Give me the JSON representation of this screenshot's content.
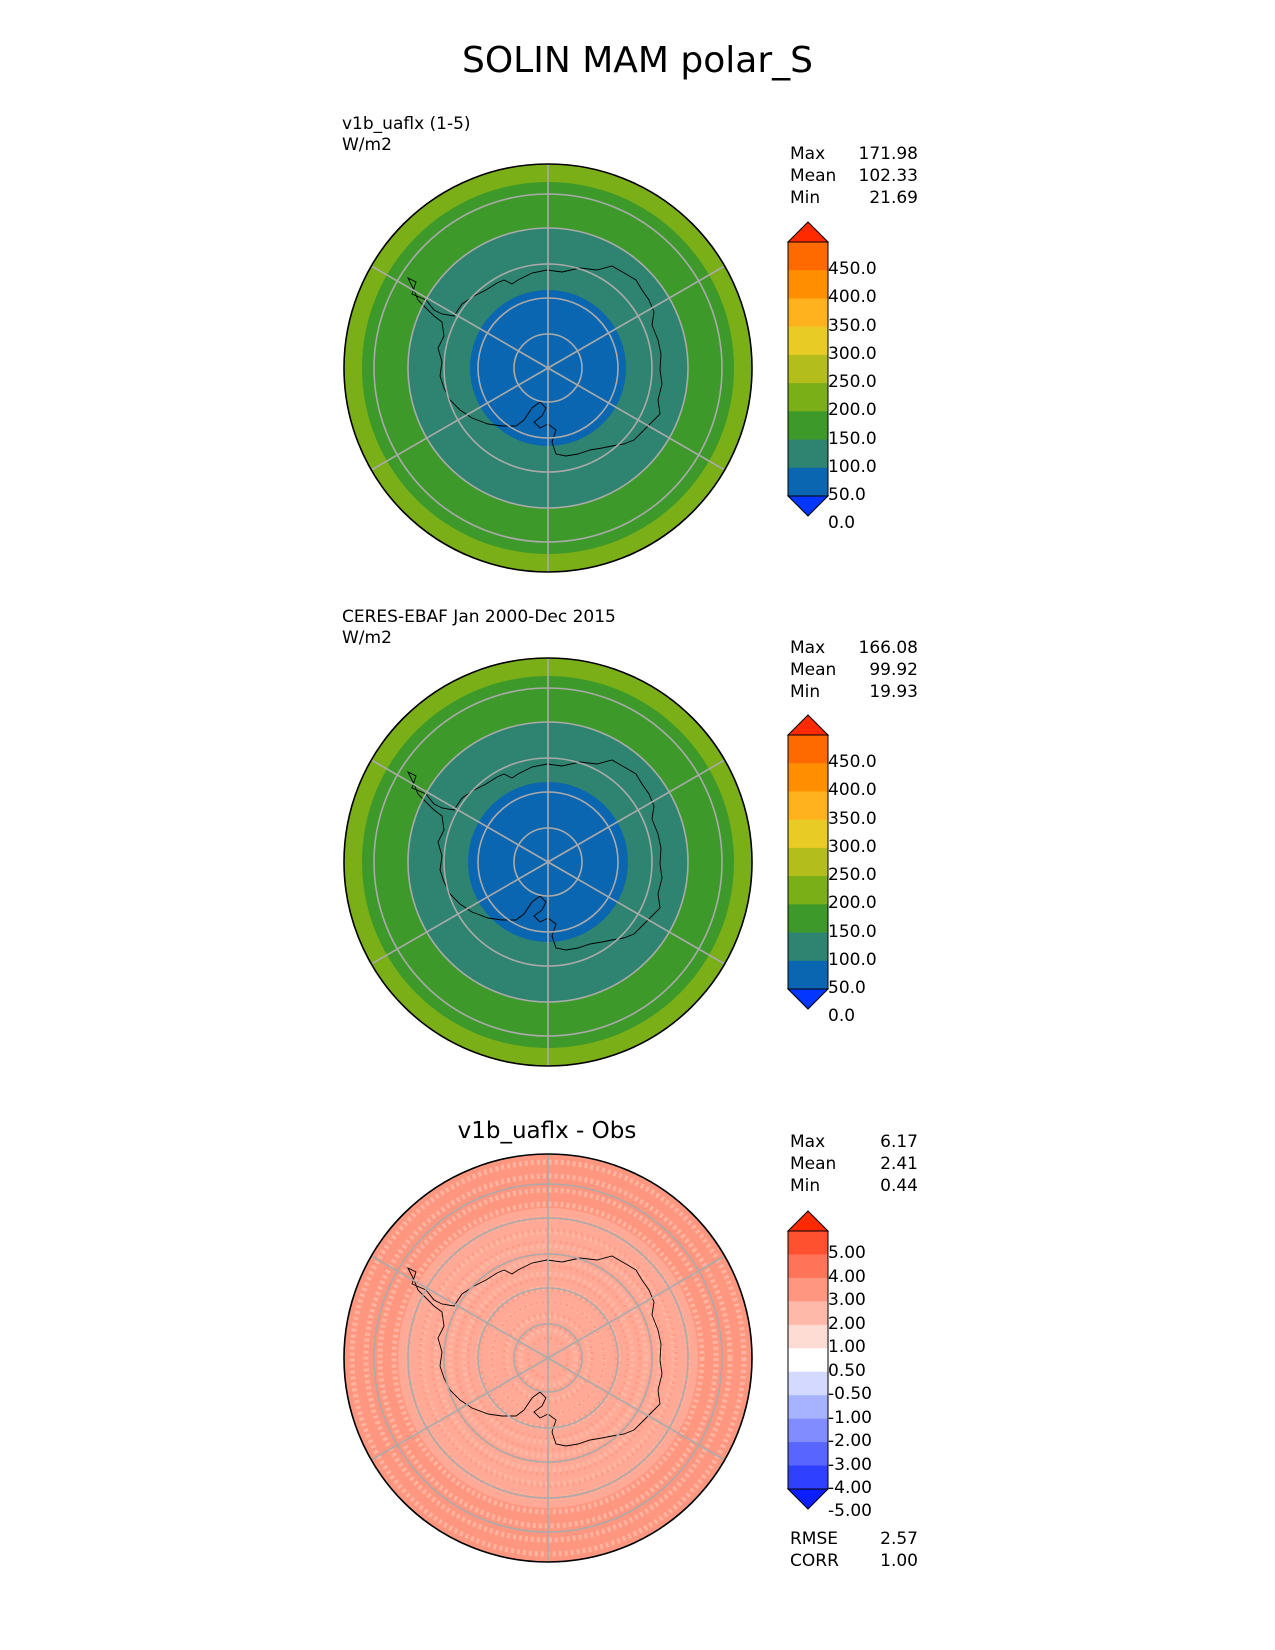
{
  "title": "SOLIN MAM polar_S",
  "panels": [
    {
      "label_line1": "v1b_uaflx (1-5)",
      "label_line2": "W/m2",
      "center_title": "",
      "stats": [
        {
          "name": "Max",
          "value": "171.98"
        },
        {
          "name": "Mean",
          "value": "102.33"
        },
        {
          "name": "Min",
          "value": "21.69"
        }
      ],
      "colorbar": {
        "ticks": [
          "450.0",
          "400.0",
          "350.0",
          "300.0",
          "250.0",
          "200.0",
          "150.0",
          "100.0",
          "50.0",
          "0.0"
        ],
        "colors": [
          "#ff2a00",
          "#ff6a00",
          "#ff8e00",
          "#ffb21d",
          "#e8cb24",
          "#b3be1d",
          "#7aaf17",
          "#3d9a2a",
          "#2e8470",
          "#0a66b0",
          "#0337ff"
        ]
      },
      "rings_hex": [
        "#7aaf17",
        "#3d9a2a",
        "#2e8470",
        "#0a66b0"
      ],
      "footer": []
    },
    {
      "label_line1": "CERES-EBAF Jan 2000-Dec 2015",
      "label_line2": "W/m2",
      "center_title": "",
      "stats": [
        {
          "name": "Max",
          "value": "166.08"
        },
        {
          "name": "Mean",
          "value": "99.92"
        },
        {
          "name": "Min",
          "value": "19.93"
        }
      ],
      "colorbar": {
        "ticks": [
          "450.0",
          "400.0",
          "350.0",
          "300.0",
          "250.0",
          "200.0",
          "150.0",
          "100.0",
          "50.0",
          "0.0"
        ],
        "colors": [
          "#ff2a00",
          "#ff6a00",
          "#ff8e00",
          "#ffb21d",
          "#e8cb24",
          "#b3be1d",
          "#7aaf17",
          "#3d9a2a",
          "#2e8470",
          "#0a66b0",
          "#0337ff"
        ]
      },
      "rings_hex": [
        "#7aaf17",
        "#3d9a2a",
        "#2e8470",
        "#0a66b0"
      ],
      "footer": []
    },
    {
      "label_line1": "",
      "label_line2": "",
      "center_title": "v1b_uaflx - Obs",
      "stats": [
        {
          "name": "Max",
          "value": "6.17"
        },
        {
          "name": "Mean",
          "value": "2.41"
        },
        {
          "name": "Min",
          "value": "0.44"
        }
      ],
      "colorbar": {
        "ticks": [
          "5.00",
          "4.00",
          "3.00",
          "2.00",
          "1.00",
          "0.50",
          "-0.50",
          "-1.00",
          "-2.00",
          "-3.00",
          "-4.00",
          "-5.00"
        ],
        "colors": [
          "#ff2a00",
          "#ff5030",
          "#ff7358",
          "#ff9680",
          "#ffb9a8",
          "#ffdcd3",
          "#ffffff",
          "#d3d9ff",
          "#a8b3ff",
          "#808cff",
          "#5866ff",
          "#3040ff",
          "#0a1eff"
        ]
      },
      "rings_hex": [
        "#ff9680",
        "#ff9a84",
        "#ffb9a8"
      ],
      "footer": [
        {
          "name": "RMSE",
          "value": "2.57"
        },
        {
          "name": "CORR",
          "value": "1.00"
        }
      ]
    }
  ]
}
